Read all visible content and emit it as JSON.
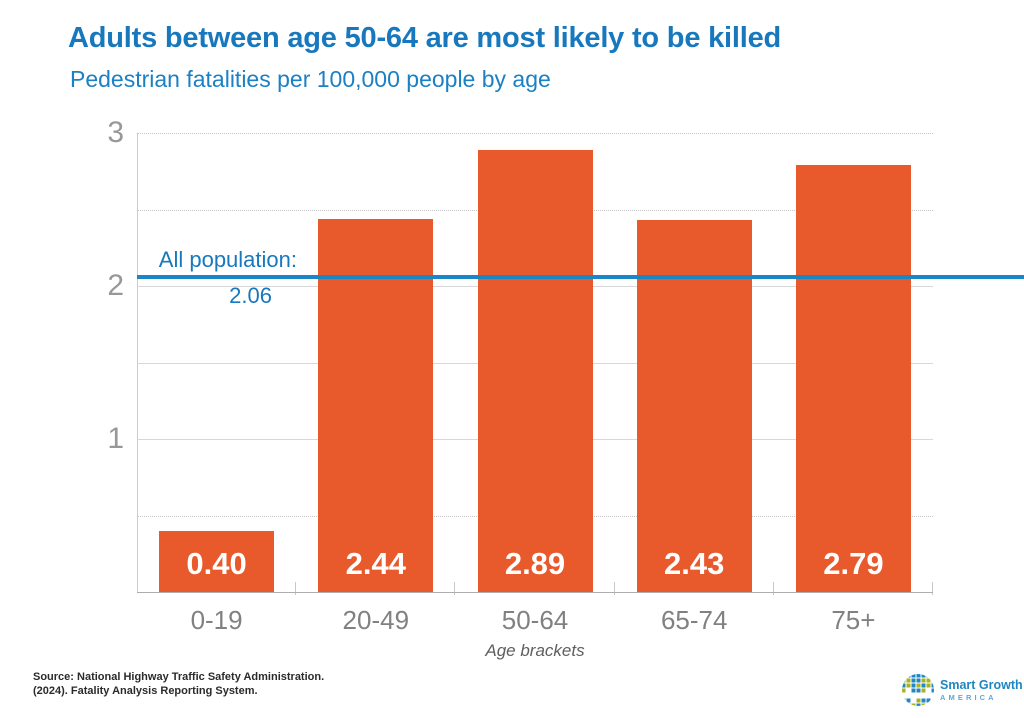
{
  "header": {
    "title": "Adults between age 50-64 are most likely to be killed",
    "subtitle": "Pedestrian fatalities per 100,000 people by age"
  },
  "chart_data": {
    "type": "bar",
    "categories": [
      "0-19",
      "20-49",
      "50-64",
      "65-74",
      "75+"
    ],
    "values": [
      0.4,
      2.44,
      2.89,
      2.43,
      2.79
    ],
    "value_labels": [
      "0.40",
      "2.44",
      "2.89",
      "2.43",
      "2.79"
    ],
    "title": "Adults between age 50-64 are most likely to be killed",
    "subtitle": "Pedestrian fatalities per 100,000 people by age",
    "xlabel": "Age brackets",
    "ylabel": "",
    "ylim": [
      0,
      3
    ],
    "yticks": [
      1,
      2,
      3
    ],
    "gridlines": [
      0.5,
      1,
      1.5,
      2,
      2.5,
      3
    ],
    "grid": true,
    "legend": "none",
    "bar_color": "#e8592b",
    "reference_line": {
      "value": 2.06,
      "label": "All population:",
      "value_label": "2.06",
      "color": "#1b86c6"
    }
  },
  "footer": {
    "source_line1": "Source: National Highway Traffic Safety Administration.",
    "source_line2": "(2024). Fatality Analysis Reporting System.",
    "logo": {
      "line1": "Smart Growth",
      "line2": "AMERICA"
    }
  },
  "colors": {
    "title_blue": "#1878be",
    "subtitle_blue": "#1c80c4",
    "bar_orange": "#e8592b",
    "reference_blue": "#1b86c6",
    "gridline_gray": "#d8d8d8",
    "axis_gray": "#adadad",
    "tick_label_gray": "#989898"
  }
}
